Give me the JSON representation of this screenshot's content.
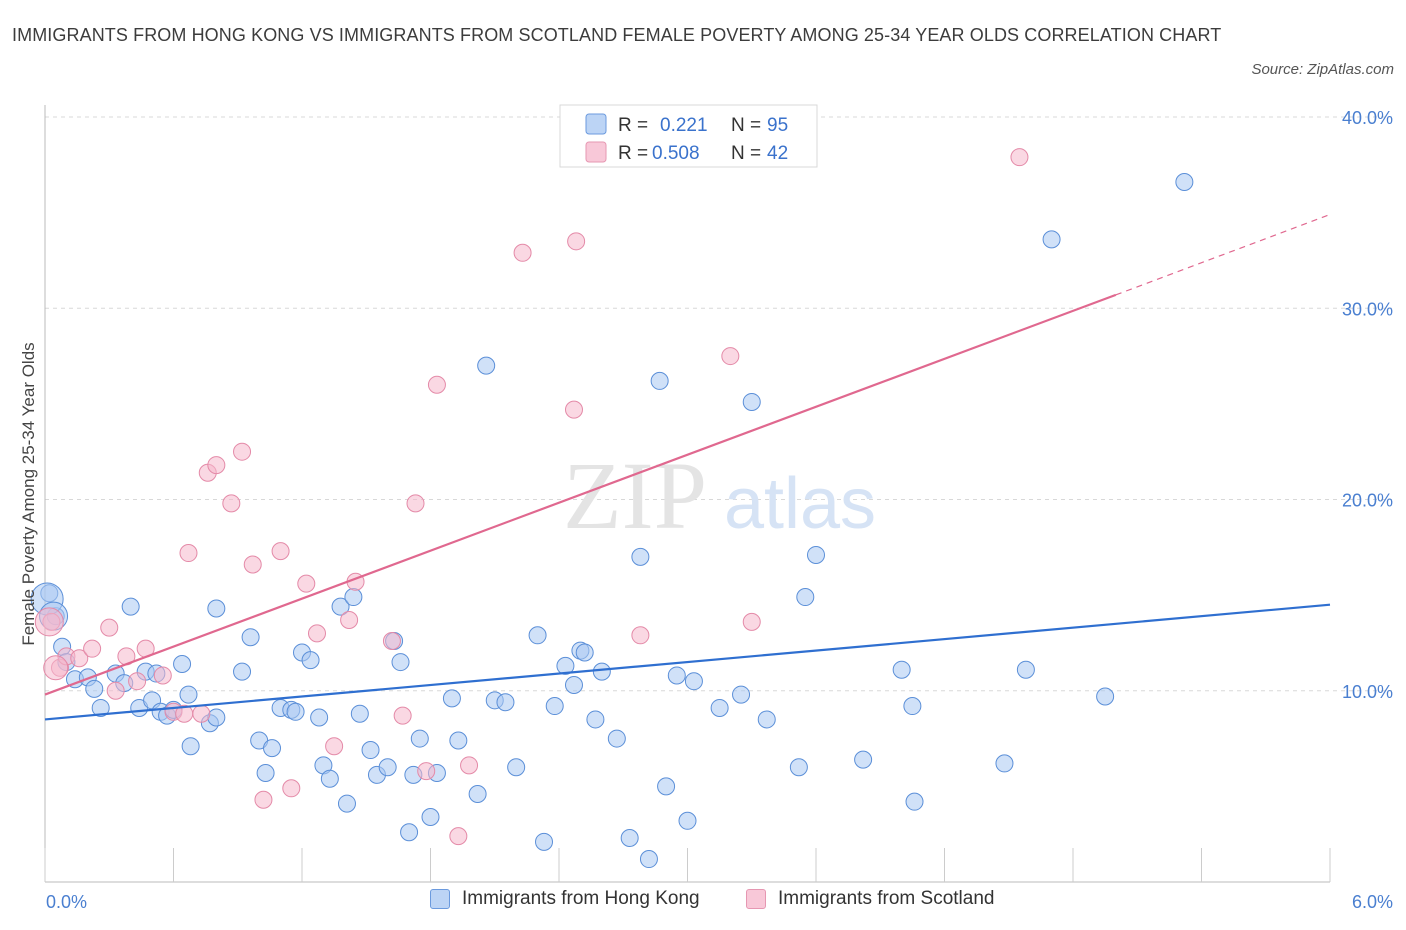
{
  "header": {
    "title": "IMMIGRANTS FROM HONG KONG VS IMMIGRANTS FROM SCOTLAND FEMALE POVERTY AMONG 25-34 YEAR OLDS CORRELATION CHART",
    "source": "Source: ZipAtlas.com"
  },
  "watermark": {
    "zip": "ZIP",
    "atlas": "atlas"
  },
  "colors": {
    "blue_fill": "#aac8f2",
    "blue_stroke": "#5b8fd8",
    "blue_line": "#2f6fd0",
    "pink_fill": "#f6b8cc",
    "pink_stroke": "#e48aa8",
    "pink_line": "#e0688f",
    "grid": "#d8d8d8",
    "axis_text": "#4a7fd0"
  },
  "legend_box": {
    "rows": [
      {
        "r_label": "R =",
        "r_value": "0.221",
        "n_label": "N =",
        "n_value": "95",
        "swatch": "blue"
      },
      {
        "r_label": "R =",
        "r_value": "0.508",
        "n_label": "N =",
        "n_value": "42",
        "swatch": "pink"
      }
    ]
  },
  "bottom_legend": [
    {
      "label": "Immigrants from Hong Kong",
      "swatch": "blue"
    },
    {
      "label": "Immigrants from Scotland",
      "swatch": "pink"
    }
  ],
  "chart_data": {
    "type": "scatter",
    "title": "IMMIGRANTS FROM HONG KONG VS IMMIGRANTS FROM SCOTLAND FEMALE POVERTY AMONG 25-34 YEAR OLDS CORRELATION CHART",
    "xlabel": "",
    "ylabel": "Female Poverty Among 25-34 Year Olds",
    "xlim": [
      0,
      6
    ],
    "ylim": [
      0,
      40
    ],
    "x_tick_labels": [
      "0.0%",
      "6.0%"
    ],
    "y_ticks": [
      10,
      20,
      30,
      40
    ],
    "y_tick_labels": [
      "10.0%",
      "20.0%",
      "30.0%",
      "40.0%"
    ],
    "grid": true,
    "legend_position": "top-center",
    "series": [
      {
        "name": "Immigrants from Hong Kong",
        "color": "blue",
        "R": 0.221,
        "N": 95,
        "trend": {
          "x0": 0,
          "y0": 8.5,
          "x1": 6,
          "y1": 14.5
        },
        "points": [
          [
            0.02,
            15.1
          ],
          [
            0.05,
            13.9
          ],
          [
            0.08,
            12.3
          ],
          [
            0.1,
            11.5
          ],
          [
            0.14,
            10.6
          ],
          [
            0.2,
            10.7
          ],
          [
            0.23,
            10.1
          ],
          [
            0.26,
            9.1
          ],
          [
            0.33,
            10.9
          ],
          [
            0.37,
            10.4
          ],
          [
            0.4,
            14.4
          ],
          [
            0.44,
            9.1
          ],
          [
            0.47,
            11.0
          ],
          [
            0.5,
            9.5
          ],
          [
            0.52,
            10.9
          ],
          [
            0.54,
            8.9
          ],
          [
            0.57,
            8.7
          ],
          [
            0.6,
            9.0
          ],
          [
            0.64,
            11.4
          ],
          [
            0.67,
            9.8
          ],
          [
            0.68,
            7.1
          ],
          [
            0.77,
            8.3
          ],
          [
            0.8,
            8.6
          ],
          [
            0.8,
            14.3
          ],
          [
            0.92,
            11.0
          ],
          [
            0.96,
            12.8
          ],
          [
            1.0,
            7.4
          ],
          [
            1.03,
            5.7
          ],
          [
            1.06,
            7.0
          ],
          [
            1.1,
            9.1
          ],
          [
            1.15,
            9.0
          ],
          [
            1.17,
            8.9
          ],
          [
            1.2,
            12.0
          ],
          [
            1.24,
            11.6
          ],
          [
            1.28,
            8.6
          ],
          [
            1.3,
            6.1
          ],
          [
            1.33,
            5.4
          ],
          [
            1.38,
            14.4
          ],
          [
            1.41,
            4.1
          ],
          [
            1.44,
            14.9
          ],
          [
            1.47,
            8.8
          ],
          [
            1.52,
            6.9
          ],
          [
            1.55,
            5.6
          ],
          [
            1.6,
            6.0
          ],
          [
            1.63,
            12.6
          ],
          [
            1.66,
            11.5
          ],
          [
            1.7,
            2.6
          ],
          [
            1.72,
            5.6
          ],
          [
            1.75,
            7.5
          ],
          [
            1.8,
            3.4
          ],
          [
            1.83,
            5.7
          ],
          [
            1.9,
            9.6
          ],
          [
            1.93,
            7.4
          ],
          [
            2.02,
            4.6
          ],
          [
            2.06,
            27.0
          ],
          [
            2.1,
            9.5
          ],
          [
            2.15,
            9.4
          ],
          [
            2.2,
            6.0
          ],
          [
            2.3,
            12.9
          ],
          [
            2.33,
            2.1
          ],
          [
            2.38,
            9.2
          ],
          [
            2.43,
            11.3
          ],
          [
            2.47,
            10.3
          ],
          [
            2.5,
            12.1
          ],
          [
            2.52,
            12.0
          ],
          [
            2.57,
            8.5
          ],
          [
            2.6,
            11.0
          ],
          [
            2.67,
            7.5
          ],
          [
            2.73,
            2.3
          ],
          [
            2.78,
            17.0
          ],
          [
            2.82,
            1.2
          ],
          [
            2.87,
            26.2
          ],
          [
            2.9,
            5.0
          ],
          [
            2.95,
            10.8
          ],
          [
            3.0,
            3.2
          ],
          [
            3.03,
            10.5
          ],
          [
            3.15,
            9.1
          ],
          [
            3.25,
            9.8
          ],
          [
            3.3,
            25.1
          ],
          [
            3.37,
            8.5
          ],
          [
            3.52,
            6.0
          ],
          [
            3.55,
            14.9
          ],
          [
            3.6,
            17.1
          ],
          [
            3.82,
            6.4
          ],
          [
            4.0,
            11.1
          ],
          [
            4.05,
            9.2
          ],
          [
            4.06,
            4.2
          ],
          [
            4.48,
            6.2
          ],
          [
            4.58,
            11.1
          ],
          [
            4.7,
            33.6
          ],
          [
            4.95,
            9.7
          ],
          [
            5.32,
            36.6
          ]
        ],
        "large_points": [
          [
            0.01,
            14.8,
            16
          ],
          [
            0.04,
            13.9,
            14
          ]
        ]
      },
      {
        "name": "Immigrants from Scotland",
        "color": "pink",
        "R": 0.508,
        "N": 42,
        "trend": {
          "x0": 0,
          "y0": 9.8,
          "x1": 5.0,
          "y1": 30.7,
          "dash_to_x": 6,
          "dash_to_y": 34.9
        },
        "points": [
          [
            0.03,
            13.6
          ],
          [
            0.07,
            11.2
          ],
          [
            0.1,
            11.8
          ],
          [
            0.16,
            11.7
          ],
          [
            0.22,
            12.2
          ],
          [
            0.3,
            13.3
          ],
          [
            0.33,
            10.0
          ],
          [
            0.38,
            11.8
          ],
          [
            0.43,
            10.5
          ],
          [
            0.47,
            12.2
          ],
          [
            0.55,
            10.8
          ],
          [
            0.6,
            8.9
          ],
          [
            0.65,
            8.8
          ],
          [
            0.67,
            17.2
          ],
          [
            0.73,
            8.8
          ],
          [
            0.76,
            21.4
          ],
          [
            0.8,
            21.8
          ],
          [
            0.87,
            19.8
          ],
          [
            0.92,
            22.5
          ],
          [
            0.97,
            16.6
          ],
          [
            1.02,
            4.3
          ],
          [
            1.1,
            17.3
          ],
          [
            1.15,
            4.9
          ],
          [
            1.22,
            15.6
          ],
          [
            1.27,
            13.0
          ],
          [
            1.35,
            7.1
          ],
          [
            1.42,
            13.7
          ],
          [
            1.45,
            15.7
          ],
          [
            1.62,
            12.6
          ],
          [
            1.67,
            8.7
          ],
          [
            1.73,
            19.8
          ],
          [
            1.78,
            5.8
          ],
          [
            1.83,
            26.0
          ],
          [
            1.93,
            2.4
          ],
          [
            1.98,
            6.1
          ],
          [
            2.23,
            32.9
          ],
          [
            2.47,
            24.7
          ],
          [
            2.48,
            33.5
          ],
          [
            2.78,
            12.9
          ],
          [
            3.2,
            27.5
          ],
          [
            3.3,
            13.6
          ],
          [
            4.55,
            37.9
          ]
        ],
        "large_points": [
          [
            0.02,
            13.6,
            14
          ],
          [
            0.05,
            11.2,
            12
          ]
        ]
      }
    ]
  }
}
